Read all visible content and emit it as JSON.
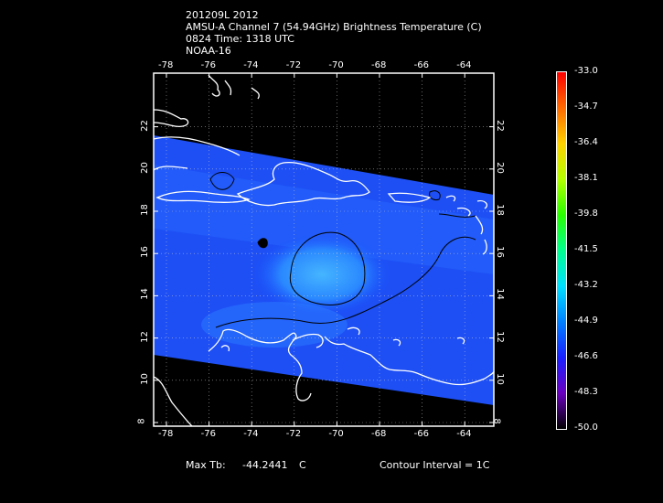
{
  "header": {
    "line1": "201209L 2012",
    "line2": "AMSU-A Channel 7 (54.94GHz) Brightness Temperature (C)",
    "line3": "0824  Time: 1318 UTC",
    "line4": "NOAA-16"
  },
  "footer": {
    "max_label": "Max Tb:",
    "max_value": "-44.2441",
    "max_unit": "C",
    "contour": "Contour Interval = 1C"
  },
  "map": {
    "lon_ticks": [
      "-78",
      "-76",
      "-74",
      "-72",
      "-70",
      "-68",
      "-66",
      "-64"
    ],
    "lat_ticks": [
      "8",
      "10",
      "12",
      "14",
      "16",
      "18",
      "20",
      "22"
    ],
    "colors": {
      "swath": "#1a55ff",
      "warm_core": "#3fa0ff",
      "coast": "#ffffff",
      "contour": "#000000",
      "grid": "#ffffff"
    }
  },
  "colorbar": {
    "labels": [
      "-33.0",
      "-34.7",
      "-36.4",
      "-38.1",
      "-39.8",
      "-41.5",
      "-43.2",
      "-44.9",
      "-46.6",
      "-48.3",
      "-50.0"
    ],
    "colors": [
      "#ff0000",
      "#ff6a00",
      "#ffd200",
      "#b4ff00",
      "#2aff00",
      "#00ff90",
      "#00e0ff",
      "#0080ff",
      "#1a20ff",
      "#6a00c0",
      "#000000"
    ]
  }
}
